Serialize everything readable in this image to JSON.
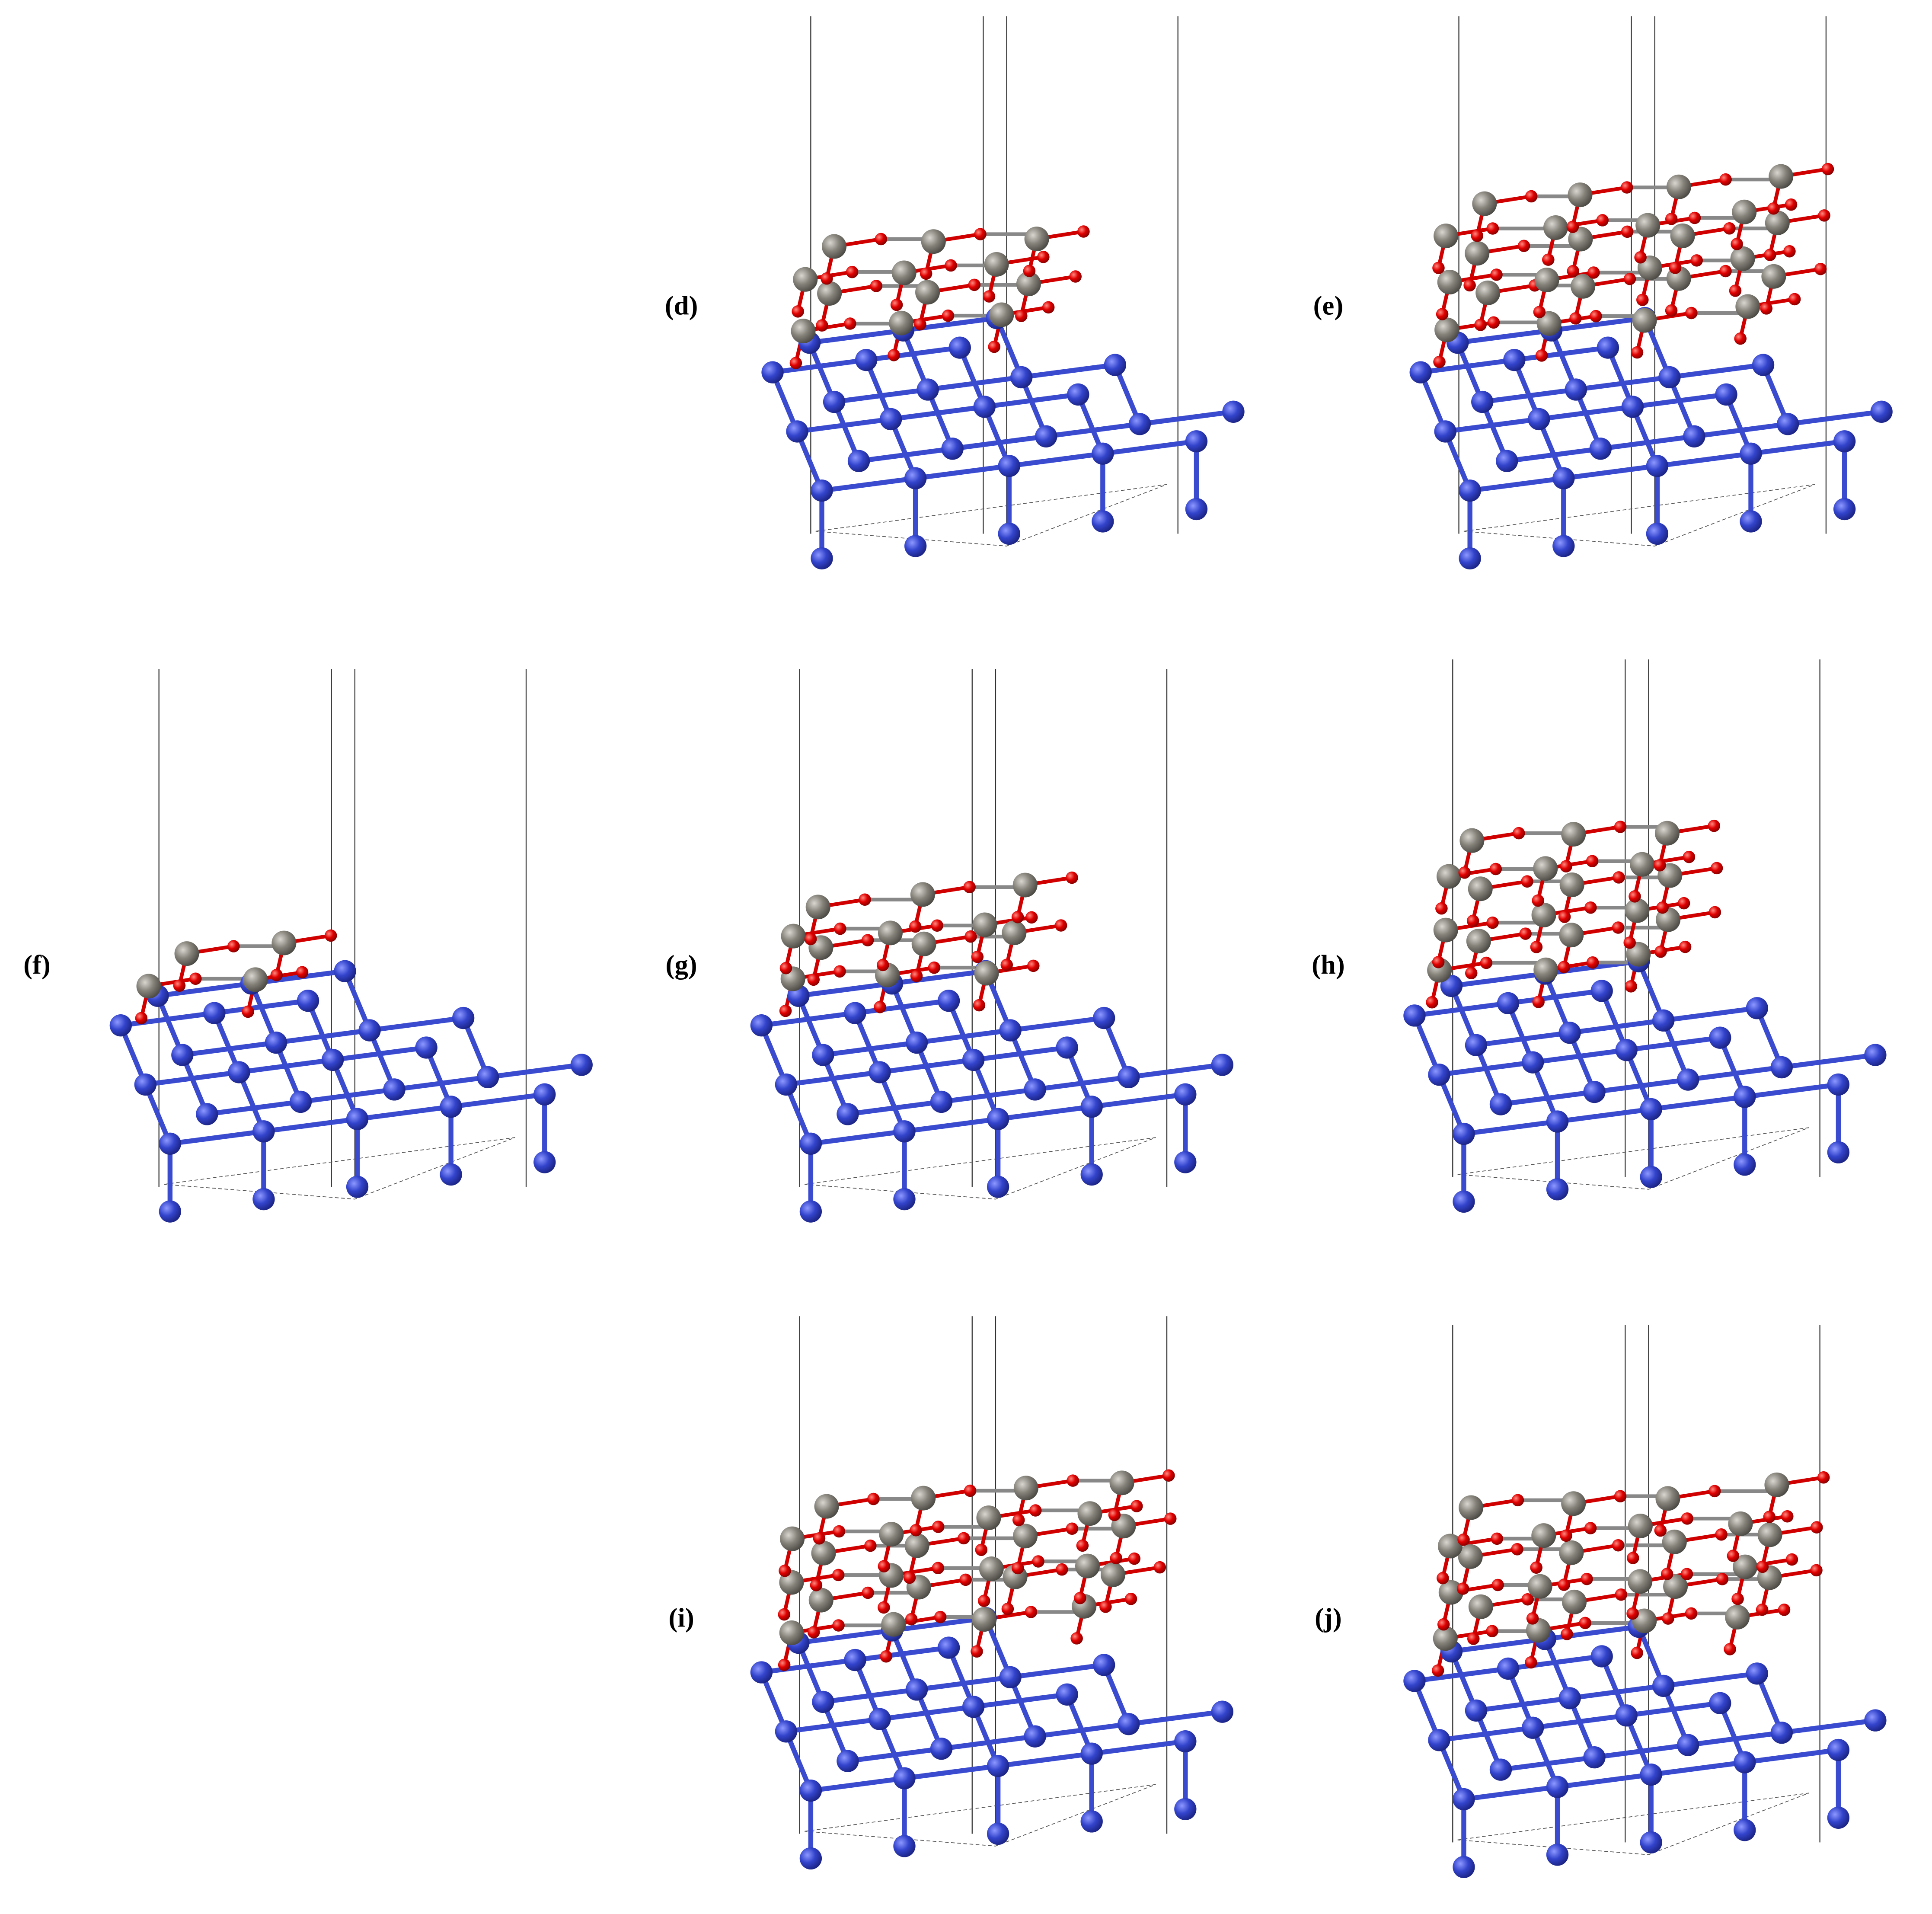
{
  "panels": [
    {
      "label": "(d)"
    },
    {
      "label": "(e)"
    },
    {
      "label": "(f)"
    },
    {
      "label": "(g)"
    },
    {
      "label": "(h)"
    },
    {
      "label": "(i)"
    },
    {
      "label": "(j)"
    }
  ]
}
